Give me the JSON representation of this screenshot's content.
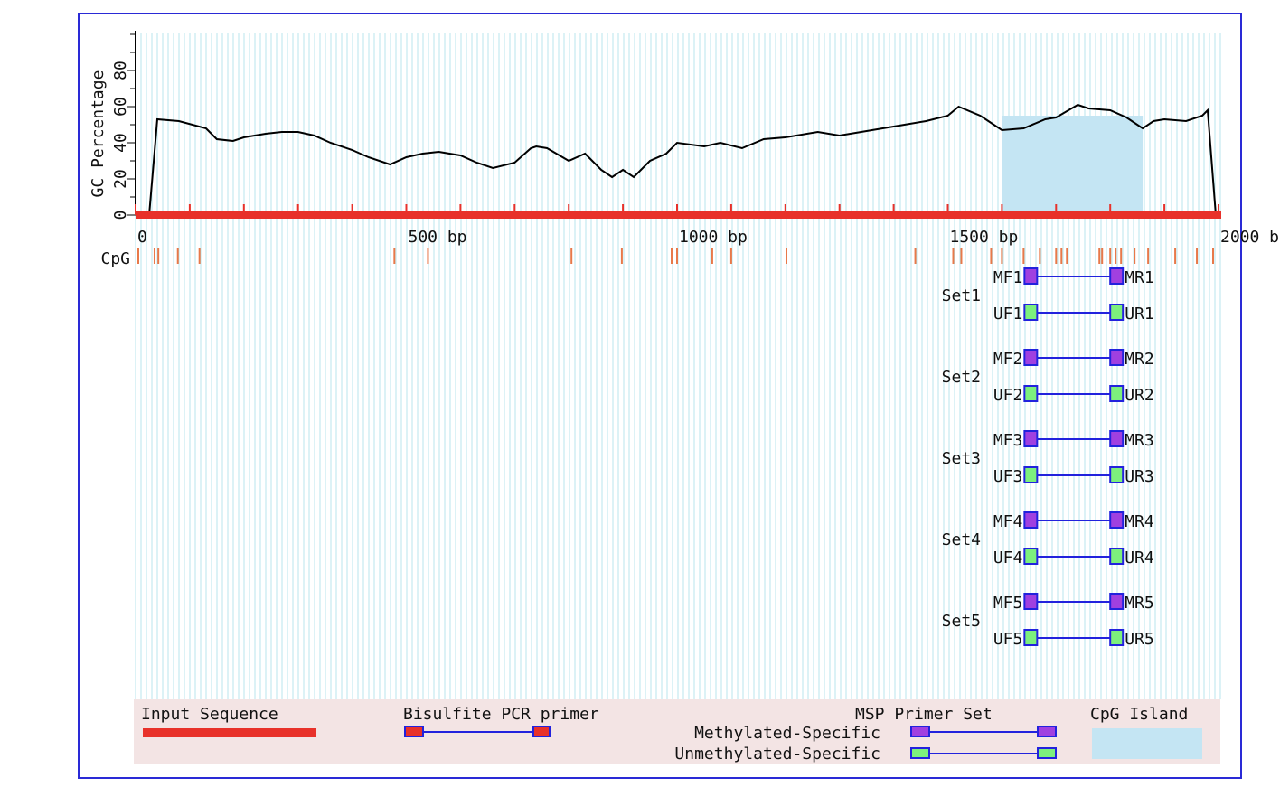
{
  "chart_data": {
    "type": "line",
    "xlabel": "",
    "ylabel": "GC Percentage",
    "xlim": [
      0,
      2000
    ],
    "ylim": [
      0,
      100
    ],
    "y_ticks": [
      "0",
      "20",
      "40",
      "60",
      "80"
    ],
    "x_ticks": [
      "0",
      "500 bp",
      "1000 bp",
      "1500 bp",
      "2000 b"
    ],
    "sequence_length": 1995,
    "gc_profile": {
      "x": [
        0,
        40,
        80,
        130,
        150,
        180,
        200,
        240,
        270,
        300,
        330,
        360,
        400,
        430,
        470,
        500,
        530,
        560,
        600,
        630,
        660,
        700,
        730,
        740,
        760,
        800,
        830,
        860,
        880,
        900,
        920,
        950,
        980,
        1000,
        1050,
        1080,
        1120,
        1160,
        1200,
        1260,
        1300,
        1340,
        1380,
        1420,
        1460,
        1500,
        1520,
        1560,
        1580,
        1600,
        1640,
        1680,
        1700,
        1740,
        1760,
        1800,
        1830,
        1860,
        1880,
        1900,
        1940,
        1970,
        1980,
        1995
      ],
      "y": [
        0,
        53,
        52,
        48,
        42,
        41,
        43,
        45,
        46,
        46,
        44,
        40,
        36,
        32,
        28,
        32,
        34,
        35,
        33,
        29,
        26,
        29,
        37,
        38,
        37,
        30,
        34,
        25,
        21,
        25,
        21,
        30,
        34,
        40,
        38,
        40,
        37,
        42,
        43,
        46,
        44,
        46,
        48,
        50,
        52,
        55,
        60,
        55,
        51,
        47,
        48,
        53,
        54,
        61,
        59,
        58,
        54,
        48,
        52,
        53,
        52,
        55,
        58,
        0
      ]
    },
    "cpg_island": {
      "start": 1600,
      "end": 1860
    },
    "cpg_label": "CpG",
    "cpg_sites": [
      5,
      35,
      42,
      78,
      118,
      478,
      540,
      805,
      898,
      990,
      1000,
      1065,
      1100,
      1202,
      1440,
      1510,
      1525,
      1580,
      1600,
      1640,
      1670,
      1700,
      1710,
      1720,
      1780,
      1785,
      1800,
      1810,
      1820,
      1845,
      1870,
      1920,
      1960,
      1990
    ],
    "primer_sets": [
      {
        "label": "Set1",
        "mf": "MF1",
        "mr": "MR1",
        "uf": "UF1",
        "ur": "UR1",
        "start": 1655,
        "end": 1810
      },
      {
        "label": "Set2",
        "mf": "MF2",
        "mr": "MR2",
        "uf": "UF2",
        "ur": "UR2",
        "start": 1655,
        "end": 1810
      },
      {
        "label": "Set3",
        "mf": "MF3",
        "mr": "MR3",
        "uf": "UF3",
        "ur": "UR3",
        "start": 1655,
        "end": 1810
      },
      {
        "label": "Set4",
        "mf": "MF4",
        "mr": "MR4",
        "uf": "UF4",
        "ur": "UR4",
        "start": 1655,
        "end": 1810
      },
      {
        "label": "Set5",
        "mf": "MF5",
        "mr": "MR5",
        "uf": "UF5",
        "ur": "UR5",
        "start": 1655,
        "end": 1810
      }
    ],
    "legend": {
      "input_sequence": "Input Sequence",
      "bisulfite_primer": "Bisulfite PCR primer",
      "msp_primer_set": "MSP Primer Set",
      "methylated": "Methylated-Specific",
      "unmethylated": "Unmethylated-Specific",
      "cpg_island": "CpG Island"
    },
    "colors": {
      "sequence_bar": "#e8312a",
      "cpg_site": "#e8794a",
      "cpg_island": "#c4e5f3",
      "gridline": "#b8e6ec",
      "methylated": "#a040e0",
      "unmethylated": "#7df07d",
      "primer_line": "#2222dd",
      "legend_bg": "#f3e4e4",
      "frame": "#2a2ad6"
    }
  }
}
